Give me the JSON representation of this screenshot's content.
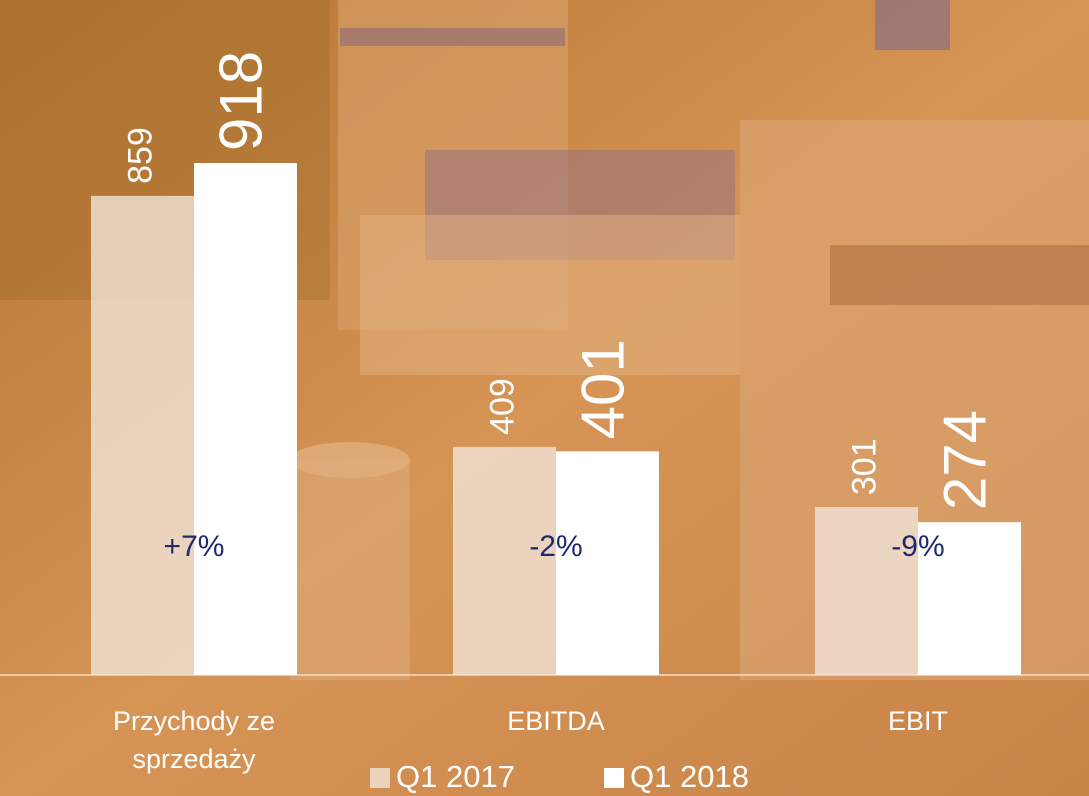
{
  "chart_data": {
    "type": "bar",
    "categories": [
      "Przychody ze sprzedaży",
      "EBITDA",
      "EBIT"
    ],
    "series": [
      {
        "name": "Q1 2017",
        "color": "#f1e3d8",
        "values": [
          859,
          409,
          301
        ]
      },
      {
        "name": "Q1 2018",
        "color": "#ffffff",
        "values": [
          918,
          401,
          274
        ]
      }
    ],
    "annotations": [
      "+7%",
      "-2%",
      "-9%"
    ]
  }
}
